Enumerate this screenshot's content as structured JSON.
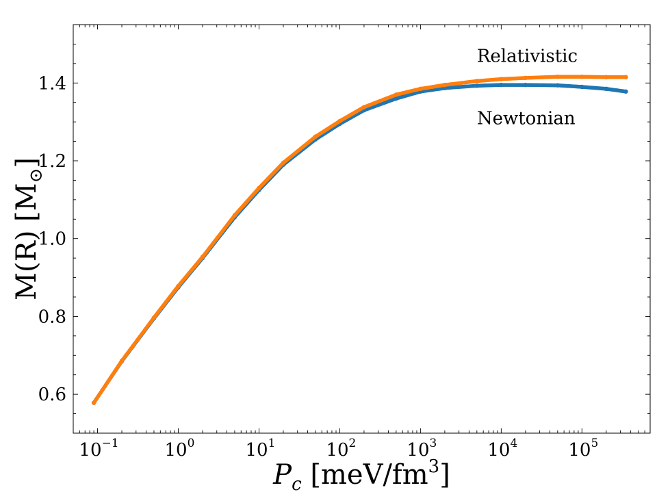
{
  "chart_data": {
    "type": "scatter",
    "xscale": "log",
    "xlim": [
      0.05,
      700000
    ],
    "ylim": [
      0.5,
      1.55
    ],
    "xlabel": {
      "var": "P",
      "sub": "c",
      "unit_open": " [meV/fm",
      "unit_sup": "3",
      "unit_close": "]"
    },
    "ylabel": {
      "text": "M(R) [M",
      "sub": "⊙",
      "close": "]"
    },
    "x_ticks": [
      {
        "base": "10",
        "exp": "−1",
        "value": 0.1
      },
      {
        "base": "10",
        "exp": "0",
        "value": 1
      },
      {
        "base": "10",
        "exp": "1",
        "value": 10
      },
      {
        "base": "10",
        "exp": "2",
        "value": 100
      },
      {
        "base": "10",
        "exp": "3",
        "value": 1000
      },
      {
        "base": "10",
        "exp": "4",
        "value": 10000
      },
      {
        "base": "10",
        "exp": "5",
        "value": 100000
      }
    ],
    "y_ticks": [
      {
        "label": "0.6",
        "value": 0.6
      },
      {
        "label": "0.8",
        "value": 0.8
      },
      {
        "label": "1.0",
        "value": 1.0
      },
      {
        "label": "1.2",
        "value": 1.2
      },
      {
        "label": "1.4",
        "value": 1.4
      }
    ],
    "annotations": [
      {
        "text": "Relativistic",
        "x": 5000,
        "y": 1.47
      },
      {
        "text": "Newtonian",
        "x": 5000,
        "y": 1.31
      }
    ],
    "series": [
      {
        "color": "#1f77b4",
        "x": [
          0.09,
          0.2,
          0.5,
          1,
          2,
          5,
          10,
          20,
          50,
          100,
          200,
          500,
          1000,
          2000,
          5000,
          10000,
          20000,
          50000,
          100000,
          200000,
          350000
        ],
        "y": [
          0.578,
          0.685,
          0.795,
          0.875,
          0.95,
          1.055,
          1.125,
          1.19,
          1.255,
          1.295,
          1.33,
          1.36,
          1.378,
          1.387,
          1.393,
          1.395,
          1.395,
          1.394,
          1.39,
          1.385,
          1.378
        ]
      },
      {
        "color": "#ff7f0e",
        "x": [
          0.09,
          0.2,
          0.5,
          1,
          2,
          5,
          10,
          20,
          50,
          100,
          200,
          500,
          1000,
          2000,
          5000,
          10000,
          20000,
          50000,
          100000,
          200000,
          350000
        ],
        "y": [
          0.578,
          0.686,
          0.797,
          0.878,
          0.953,
          1.06,
          1.13,
          1.195,
          1.262,
          1.302,
          1.338,
          1.37,
          1.385,
          1.395,
          1.405,
          1.41,
          1.413,
          1.416,
          1.416,
          1.415,
          1.415
        ]
      }
    ]
  }
}
